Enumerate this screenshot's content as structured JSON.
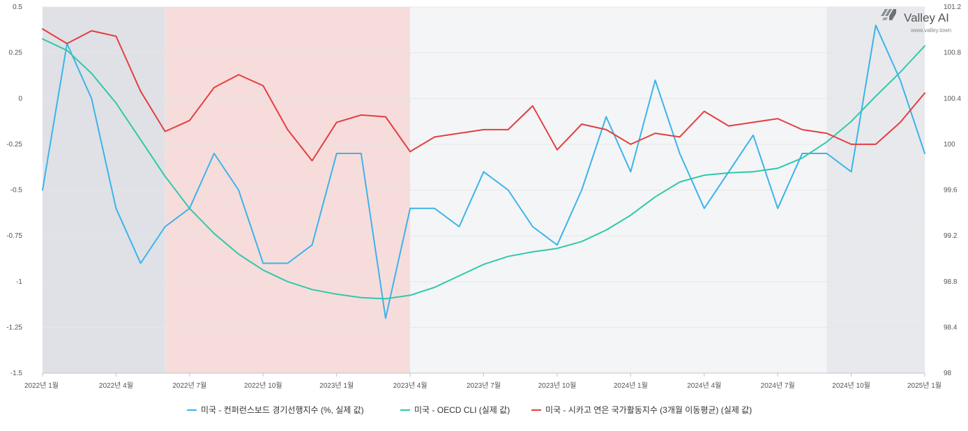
{
  "chart_data": {
    "type": "line",
    "x": [
      "2022-01",
      "2022-02",
      "2022-03",
      "2022-04",
      "2022-05",
      "2022-06",
      "2022-07",
      "2022-08",
      "2022-09",
      "2022-10",
      "2022-11",
      "2022-12",
      "2023-01",
      "2023-02",
      "2023-03",
      "2023-04",
      "2023-05",
      "2023-06",
      "2023-07",
      "2023-08",
      "2023-09",
      "2023-10",
      "2023-11",
      "2023-12",
      "2024-01",
      "2024-02",
      "2024-03",
      "2024-04",
      "2024-05",
      "2024-06",
      "2024-07",
      "2024-08",
      "2024-09",
      "2024-10",
      "2024-11",
      "2024-12",
      "2025-01"
    ],
    "x_tick_labels": [
      "2022년 1월",
      "2022년 4월",
      "2022년 7월",
      "2022년 10월",
      "2023년 1월",
      "2023년 4월",
      "2023년 7월",
      "2023년 10월",
      "2024년 1월",
      "2024년 4월",
      "2024년 7월",
      "2024년 10월",
      "2025년 1월"
    ],
    "y_left": {
      "ylim": [
        -1.5,
        0.5
      ],
      "tick_labels": [
        "0.5",
        "0.25",
        "0",
        "-0.25",
        "-0.5",
        "-0.75",
        "-1",
        "-1.25",
        "-1.5"
      ]
    },
    "y_right": {
      "ylim": [
        98,
        101.2
      ],
      "tick_labels": [
        "101.2",
        "100.8",
        "100.4",
        "100",
        "99.6",
        "99.2",
        "98.8",
        "98.4",
        "98"
      ]
    },
    "shaded_regions": [
      {
        "from": "2022-01",
        "to": "2022-06",
        "color": "#dfe1e6"
      },
      {
        "from": "2022-06",
        "to": "2023-04",
        "color": "#f7dcdc"
      },
      {
        "from": "2023-04",
        "to": "2024-09",
        "color": "#f4f5f7"
      },
      {
        "from": "2024-09",
        "to": "2025-01",
        "color": "#e8e9ed"
      }
    ],
    "series": [
      {
        "name": "미국 - 컨퍼런스보드 경기선행지수 (%, 실제 값)",
        "axis": "left",
        "color": "#3bb4ea",
        "values": [
          -0.5,
          0.3,
          0.0,
          -0.6,
          -0.9,
          -0.7,
          -0.6,
          -0.3,
          -0.5,
          -0.9,
          -0.9,
          -0.8,
          -0.3,
          -0.3,
          -1.2,
          -0.6,
          -0.6,
          -0.7,
          -0.4,
          -0.5,
          -0.7,
          -0.8,
          -0.5,
          -0.1,
          -0.4,
          0.1,
          -0.3,
          -0.6,
          -0.4,
          -0.2,
          -0.6,
          -0.3,
          -0.3,
          -0.4,
          0.4,
          0.1,
          -0.3
        ]
      },
      {
        "name": "미국 - OECD CLI (실제 값)",
        "axis": "right",
        "color": "#2ec9aa",
        "values": [
          100.92,
          100.82,
          100.62,
          100.36,
          100.04,
          99.72,
          99.44,
          99.22,
          99.04,
          98.9,
          98.8,
          98.73,
          98.69,
          98.66,
          98.65,
          98.68,
          98.75,
          98.85,
          98.95,
          99.02,
          99.06,
          99.09,
          99.15,
          99.25,
          99.38,
          99.54,
          99.67,
          99.73,
          99.75,
          99.76,
          99.79,
          99.88,
          100.02,
          100.2,
          100.42,
          100.63,
          100.86
        ]
      },
      {
        "name": "미국 - 시카고 연은 국가활동지수 (3개월 이동평균) (실제 값)",
        "axis": "left",
        "color": "#e43e3e",
        "values": [
          0.38,
          0.3,
          0.37,
          0.34,
          0.04,
          -0.18,
          -0.12,
          0.06,
          0.13,
          0.07,
          -0.17,
          -0.34,
          -0.13,
          -0.09,
          -0.1,
          -0.29,
          -0.21,
          -0.19,
          -0.17,
          -0.17,
          -0.04,
          -0.28,
          -0.14,
          -0.17,
          -0.25,
          -0.19,
          -0.21,
          -0.07,
          -0.15,
          -0.13,
          -0.11,
          -0.17,
          -0.19,
          -0.25,
          -0.25,
          -0.13,
          0.03
        ]
      }
    ]
  },
  "logo": {
    "name": "Valley AI",
    "url": "www.valley.town"
  }
}
